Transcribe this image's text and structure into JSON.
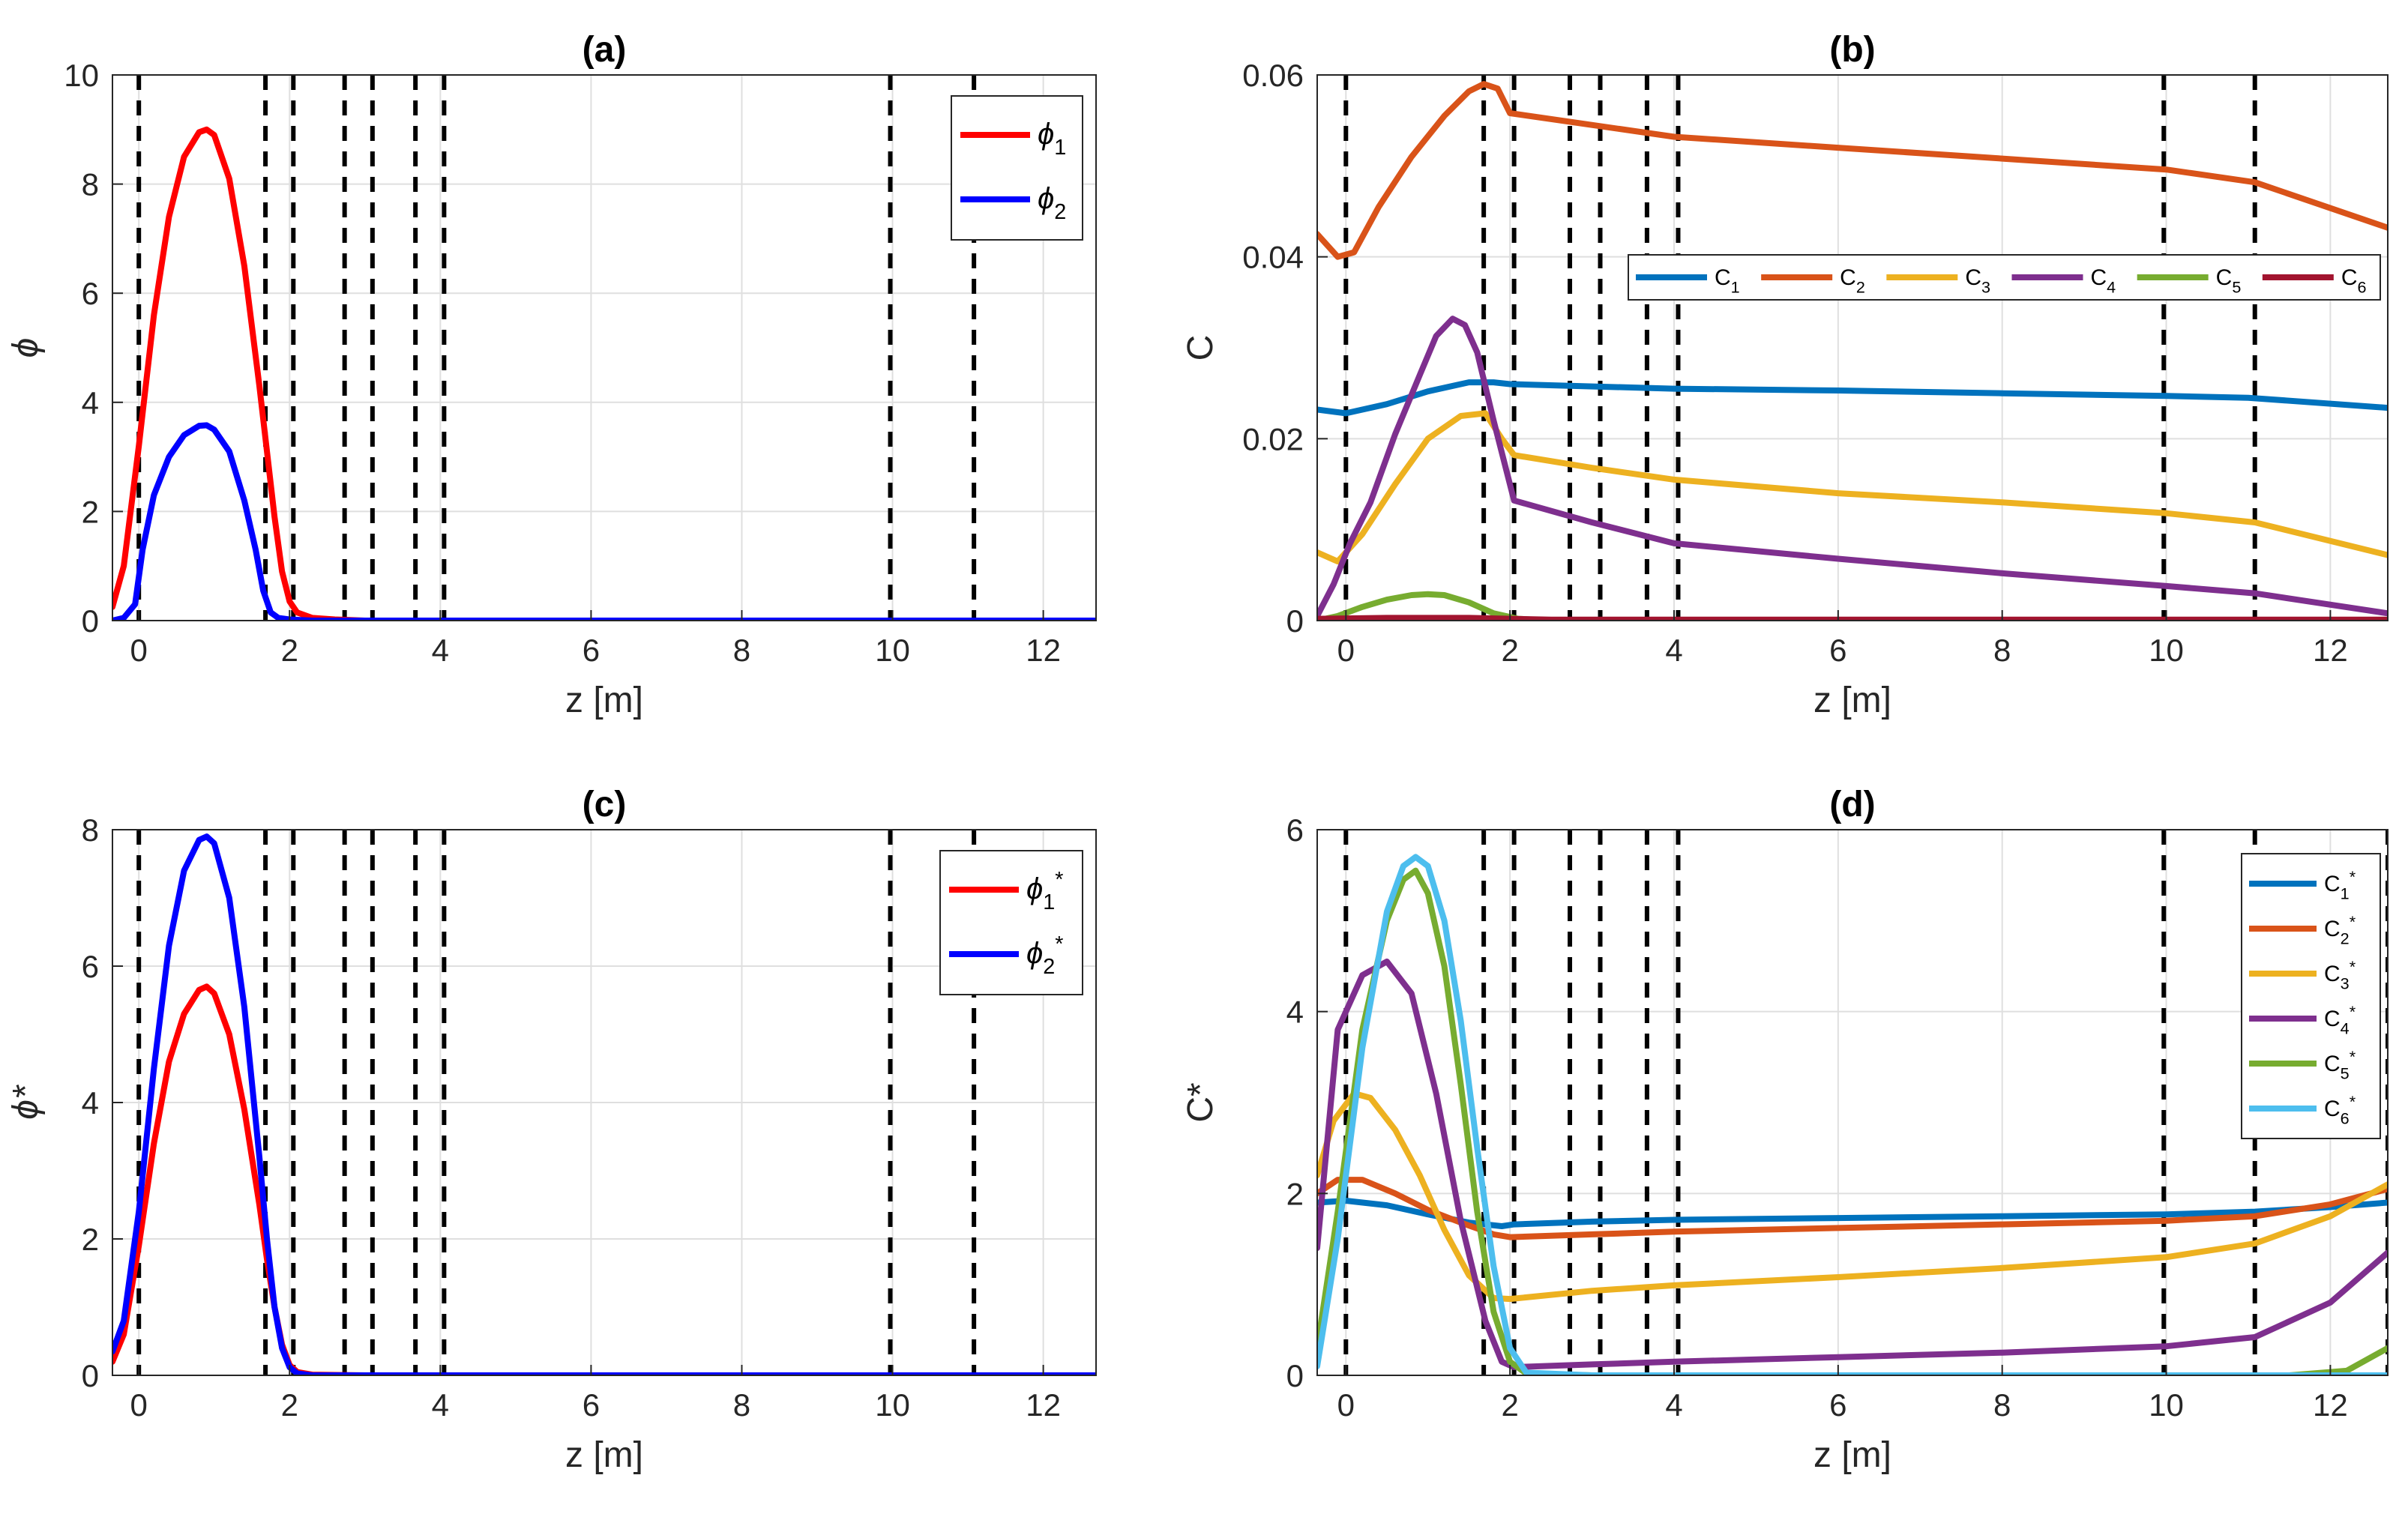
{
  "chart_data": [
    {
      "id": "a",
      "type": "line",
      "title": "(a)",
      "xlabel": "z [m]",
      "ylabel": "ϕ",
      "xlim": [
        -0.35,
        12.7
      ],
      "ylim": [
        0,
        10
      ],
      "xticks": [
        0,
        2,
        4,
        6,
        8,
        10,
        12
      ],
      "yticks": [
        0,
        2,
        4,
        6,
        8,
        10
      ],
      "xtick_labels": [
        "0",
        "2",
        "4",
        "6",
        "8",
        "10",
        "12"
      ],
      "ytick_labels": [
        "0",
        "2",
        "4",
        "6",
        "8",
        "10"
      ],
      "vlines": [
        0,
        1.68,
        2.05,
        2.73,
        3.1,
        3.67,
        4.05,
        9.97,
        11.08
      ],
      "legend": {
        "location": "top-right"
      },
      "series": [
        {
          "name": "ϕ",
          "sub": "1",
          "sup": "",
          "color": "#ff0000",
          "x": [
            -0.35,
            -0.2,
            0,
            0.2,
            0.4,
            0.6,
            0.8,
            0.9,
            1.0,
            1.2,
            1.4,
            1.6,
            1.7,
            1.8,
            1.9,
            2.0,
            2.1,
            2.3,
            2.6,
            3,
            4,
            6,
            8,
            10,
            12,
            12.7
          ],
          "y": [
            0.25,
            1.0,
            3.2,
            5.6,
            7.4,
            8.5,
            8.95,
            9.0,
            8.9,
            8.1,
            6.5,
            4.3,
            3.1,
            1.9,
            0.9,
            0.35,
            0.15,
            0.05,
            0.02,
            0,
            0,
            0,
            0,
            0,
            0,
            0
          ]
        },
        {
          "name": "ϕ",
          "sub": "2",
          "sup": "",
          "color": "#0000ff",
          "x": [
            -0.35,
            -0.2,
            -0.05,
            0.05,
            0.2,
            0.4,
            0.6,
            0.8,
            0.9,
            1.0,
            1.2,
            1.4,
            1.55,
            1.65,
            1.75,
            1.85,
            2.0,
            2.3,
            3,
            4,
            6,
            8,
            10,
            12,
            12.7
          ],
          "y": [
            0.0,
            0.05,
            0.3,
            1.3,
            2.3,
            3.0,
            3.4,
            3.57,
            3.58,
            3.5,
            3.1,
            2.2,
            1.3,
            0.55,
            0.15,
            0.05,
            0.02,
            0,
            0,
            0,
            0,
            0,
            0,
            0,
            0
          ]
        }
      ]
    },
    {
      "id": "b",
      "type": "line",
      "title": "(b)",
      "xlabel": "z [m]",
      "ylabel": "C",
      "xlim": [
        -0.35,
        12.7
      ],
      "ylim": [
        0,
        0.06
      ],
      "xticks": [
        0,
        2,
        4,
        6,
        8,
        10,
        12
      ],
      "yticks": [
        0,
        0.02,
        0.04,
        0.06
      ],
      "xtick_labels": [
        "0",
        "2",
        "4",
        "6",
        "8",
        "10",
        "12"
      ],
      "ytick_labels": [
        "0",
        "0.02",
        "0.04",
        "0.06"
      ],
      "vlines": [
        0,
        1.68,
        2.05,
        2.73,
        3.1,
        3.67,
        4.05,
        9.97,
        11.08
      ],
      "legend": {
        "location": "upper-center-horizontal"
      },
      "series": [
        {
          "name": "C",
          "sub": "1",
          "sup": "",
          "color": "#0072bd",
          "x": [
            -0.35,
            0,
            0.5,
            1.0,
            1.5,
            1.8,
            2.0,
            4,
            6,
            8,
            10,
            11,
            12.7
          ],
          "y": [
            0.0232,
            0.0228,
            0.0238,
            0.0252,
            0.0262,
            0.0262,
            0.026,
            0.0255,
            0.0253,
            0.025,
            0.0247,
            0.0245,
            0.0234
          ]
        },
        {
          "name": "C",
          "sub": "2",
          "sup": "",
          "color": "#d95319",
          "x": [
            -0.35,
            -0.1,
            0.1,
            0.4,
            0.8,
            1.2,
            1.5,
            1.68,
            1.85,
            2.0,
            4,
            6,
            8,
            10,
            11.08,
            12.7
          ],
          "y": [
            0.0425,
            0.04,
            0.0405,
            0.0455,
            0.051,
            0.0555,
            0.0582,
            0.059,
            0.0585,
            0.0558,
            0.0532,
            0.052,
            0.0508,
            0.0496,
            0.0482,
            0.0432
          ]
        },
        {
          "name": "C",
          "sub": "3",
          "sup": "",
          "color": "#edb120",
          "x": [
            -0.35,
            -0.1,
            0.2,
            0.6,
            1.0,
            1.4,
            1.7,
            1.9,
            2.05,
            3,
            4,
            6,
            8,
            10,
            11.08,
            12.7
          ],
          "y": [
            0.0075,
            0.0065,
            0.0095,
            0.015,
            0.02,
            0.0225,
            0.0228,
            0.02,
            0.0182,
            0.0168,
            0.0155,
            0.014,
            0.013,
            0.0118,
            0.0108,
            0.0072
          ]
        },
        {
          "name": "C",
          "sub": "4",
          "sup": "",
          "color": "#7e2f8e",
          "x": [
            -0.35,
            -0.15,
            0.05,
            0.3,
            0.6,
            0.9,
            1.1,
            1.3,
            1.45,
            1.6,
            1.8,
            2.05,
            3,
            4,
            6,
            8,
            10,
            11.08,
            12.7
          ],
          "y": [
            0.0005,
            0.004,
            0.0085,
            0.013,
            0.0205,
            0.027,
            0.0313,
            0.0332,
            0.0325,
            0.0295,
            0.022,
            0.0132,
            0.0108,
            0.0085,
            0.0068,
            0.0052,
            0.0038,
            0.003,
            0.0008
          ]
        },
        {
          "name": "C",
          "sub": "5",
          "sup": "",
          "color": "#77ac30",
          "x": [
            -0.35,
            -0.1,
            0.2,
            0.5,
            0.8,
            1.0,
            1.2,
            1.5,
            1.8,
            2.1,
            2.5,
            4,
            8,
            12.7
          ],
          "y": [
            0.0,
            0.0005,
            0.0015,
            0.0023,
            0.0028,
            0.0029,
            0.0028,
            0.002,
            0.0008,
            0.0002,
            0,
            0,
            0,
            0
          ]
        },
        {
          "name": "C",
          "sub": "6",
          "sup": "",
          "color": "#a2142f",
          "x": [
            -0.35,
            0.5,
            1.5,
            2.5,
            4,
            8,
            12.7
          ],
          "y": [
            0.0002,
            0.0003,
            0.0003,
            0.0001,
            0.0001,
            0.0001,
            0.0001
          ]
        }
      ]
    },
    {
      "id": "c",
      "type": "line",
      "title": "(c)",
      "xlabel": "z [m]",
      "ylabel": "ϕ*",
      "xlim": [
        -0.35,
        12.7
      ],
      "ylim": [
        0,
        8
      ],
      "xticks": [
        0,
        2,
        4,
        6,
        8,
        10,
        12
      ],
      "yticks": [
        0,
        2,
        4,
        6,
        8
      ],
      "xtick_labels": [
        "0",
        "2",
        "4",
        "6",
        "8",
        "10",
        "12"
      ],
      "ytick_labels": [
        "0",
        "2",
        "4",
        "6",
        "8"
      ],
      "vlines": [
        0,
        1.68,
        2.05,
        2.73,
        3.1,
        3.67,
        4.05,
        9.97,
        11.08
      ],
      "legend": {
        "location": "top-right"
      },
      "series": [
        {
          "name": "ϕ",
          "sub": "1",
          "sup": "*",
          "color": "#ff0000",
          "x": [
            -0.35,
            -0.2,
            0,
            0.2,
            0.4,
            0.6,
            0.8,
            0.9,
            1.0,
            1.2,
            1.4,
            1.6,
            1.7,
            1.8,
            1.9,
            2.0,
            2.1,
            2.3,
            3,
            4,
            6,
            8,
            10,
            12,
            12.7
          ],
          "y": [
            0.2,
            0.6,
            1.9,
            3.4,
            4.6,
            5.3,
            5.65,
            5.7,
            5.6,
            5.0,
            3.9,
            2.5,
            1.7,
            1.0,
            0.45,
            0.15,
            0.05,
            0.01,
            0,
            0,
            0,
            0,
            0,
            0,
            0
          ]
        },
        {
          "name": "ϕ",
          "sub": "2",
          "sup": "*",
          "color": "#0000ff",
          "x": [
            -0.35,
            -0.2,
            0,
            0.2,
            0.4,
            0.6,
            0.8,
            0.9,
            1.0,
            1.2,
            1.4,
            1.6,
            1.7,
            1.8,
            1.9,
            2.0,
            2.1,
            2.3,
            3,
            4,
            6,
            8,
            10,
            12,
            12.7
          ],
          "y": [
            0.35,
            0.8,
            2.4,
            4.5,
            6.3,
            7.4,
            7.85,
            7.9,
            7.8,
            7.0,
            5.4,
            3.2,
            2.0,
            1.0,
            0.4,
            0.12,
            0.03,
            0.0,
            0,
            0,
            0,
            0,
            0,
            0,
            0
          ]
        }
      ]
    },
    {
      "id": "d",
      "type": "line",
      "title": "(d)",
      "xlabel": "z [m]",
      "ylabel": "C*",
      "xlim": [
        -0.35,
        12.7
      ],
      "ylim": [
        0,
        6
      ],
      "xticks": [
        0,
        2,
        4,
        6,
        8,
        10,
        12
      ],
      "yticks": [
        0,
        2,
        4,
        6
      ],
      "xtick_labels": [
        "0",
        "2",
        "4",
        "6",
        "8",
        "10",
        "12"
      ],
      "ytick_labels": [
        "0",
        "2",
        "4",
        "6"
      ],
      "vlines": [
        0,
        1.68,
        2.05,
        2.73,
        3.1,
        3.67,
        4.05,
        9.97,
        11.08,
        12.7
      ],
      "legend": {
        "location": "top-right-vertical"
      },
      "series": [
        {
          "name": "C",
          "sub": "1",
          "sup": "*",
          "color": "#0072bd",
          "x": [
            -0.35,
            0,
            0.5,
            1.0,
            1.5,
            1.9,
            2.05,
            3,
            4,
            6,
            8,
            10,
            11.08,
            12,
            12.7
          ],
          "y": [
            1.9,
            1.92,
            1.87,
            1.77,
            1.68,
            1.64,
            1.66,
            1.69,
            1.71,
            1.73,
            1.75,
            1.77,
            1.8,
            1.85,
            1.9
          ]
        },
        {
          "name": "C",
          "sub": "2",
          "sup": "*",
          "color": "#d95319",
          "x": [
            -0.35,
            -0.1,
            0.2,
            0.6,
            1.0,
            1.4,
            1.8,
            2.0,
            3,
            4,
            6,
            8,
            10,
            11.08,
            12,
            12.7
          ],
          "y": [
            2.0,
            2.15,
            2.15,
            2.0,
            1.82,
            1.68,
            1.55,
            1.52,
            1.55,
            1.58,
            1.62,
            1.66,
            1.7,
            1.75,
            1.88,
            2.05
          ]
        },
        {
          "name": "C",
          "sub": "3",
          "sup": "*",
          "color": "#edb120",
          "x": [
            -0.35,
            -0.15,
            0.1,
            0.3,
            0.6,
            0.9,
            1.2,
            1.5,
            1.8,
            2.0,
            3,
            4,
            6,
            8,
            10,
            11.08,
            12,
            12.7
          ],
          "y": [
            2.2,
            2.8,
            3.1,
            3.05,
            2.7,
            2.2,
            1.6,
            1.1,
            0.85,
            0.84,
            0.93,
            0.99,
            1.08,
            1.18,
            1.3,
            1.45,
            1.75,
            2.1
          ]
        },
        {
          "name": "C",
          "sub": "4",
          "sup": "*",
          "color": "#7e2f8e",
          "x": [
            -0.35,
            -0.1,
            0.2,
            0.5,
            0.8,
            1.1,
            1.4,
            1.7,
            1.9,
            2.05,
            3,
            4,
            6,
            8,
            10,
            11.08,
            12,
            12.7
          ],
          "y": [
            1.4,
            3.8,
            4.4,
            4.55,
            4.2,
            3.1,
            1.7,
            0.6,
            0.15,
            0.09,
            0.12,
            0.15,
            0.2,
            0.25,
            0.32,
            0.42,
            0.8,
            1.35
          ]
        },
        {
          "name": "C",
          "sub": "5",
          "sup": "*",
          "color": "#77ac30",
          "x": [
            -0.35,
            -0.1,
            0.2,
            0.5,
            0.7,
            0.85,
            1.0,
            1.2,
            1.4,
            1.6,
            1.8,
            2.0,
            2.2,
            3,
            6,
            10,
            11.5,
            12.2,
            12.7
          ],
          "y": [
            0.3,
            1.8,
            3.8,
            5.0,
            5.45,
            5.55,
            5.3,
            4.5,
            3.2,
            1.8,
            0.7,
            0.15,
            0.02,
            0,
            0,
            0,
            0.0,
            0.05,
            0.3
          ]
        },
        {
          "name": "C",
          "sub": "6",
          "sup": "*",
          "color": "#4dbeee",
          "x": [
            -0.35,
            -0.1,
            0.2,
            0.5,
            0.7,
            0.85,
            1.0,
            1.2,
            1.4,
            1.6,
            1.8,
            2.0,
            2.2,
            3,
            6,
            10,
            12.7
          ],
          "y": [
            0.1,
            1.5,
            3.6,
            5.1,
            5.6,
            5.7,
            5.6,
            5.0,
            3.9,
            2.5,
            1.2,
            0.3,
            0.03,
            0,
            0,
            0,
            0
          ]
        }
      ]
    }
  ]
}
